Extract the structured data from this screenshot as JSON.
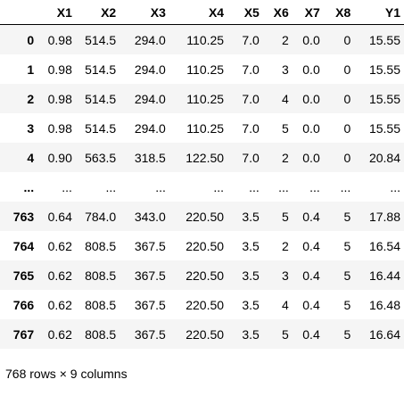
{
  "dataframe": {
    "index_header": "",
    "columns": [
      "X1",
      "X2",
      "X3",
      "X4",
      "X5",
      "X6",
      "X7",
      "X8",
      "Y1"
    ],
    "rows": [
      {
        "index": "0",
        "values": [
          "0.98",
          "514.5",
          "294.0",
          "110.25",
          "7.0",
          "2",
          "0.0",
          "0",
          "15.55"
        ]
      },
      {
        "index": "1",
        "values": [
          "0.98",
          "514.5",
          "294.0",
          "110.25",
          "7.0",
          "3",
          "0.0",
          "0",
          "15.55"
        ]
      },
      {
        "index": "2",
        "values": [
          "0.98",
          "514.5",
          "294.0",
          "110.25",
          "7.0",
          "4",
          "0.0",
          "0",
          "15.55"
        ]
      },
      {
        "index": "3",
        "values": [
          "0.98",
          "514.5",
          "294.0",
          "110.25",
          "7.0",
          "5",
          "0.0",
          "0",
          "15.55"
        ]
      },
      {
        "index": "4",
        "values": [
          "0.90",
          "563.5",
          "318.5",
          "122.50",
          "7.0",
          "2",
          "0.0",
          "0",
          "20.84"
        ]
      },
      {
        "index": "...",
        "values": [
          "...",
          "...",
          "...",
          "...",
          "...",
          "...",
          "...",
          "...",
          "..."
        ]
      },
      {
        "index": "763",
        "values": [
          "0.64",
          "784.0",
          "343.0",
          "220.50",
          "3.5",
          "5",
          "0.4",
          "5",
          "17.88"
        ]
      },
      {
        "index": "764",
        "values": [
          "0.62",
          "808.5",
          "367.5",
          "220.50",
          "3.5",
          "2",
          "0.4",
          "5",
          "16.54"
        ]
      },
      {
        "index": "765",
        "values": [
          "0.62",
          "808.5",
          "367.5",
          "220.50",
          "3.5",
          "3",
          "0.4",
          "5",
          "16.44"
        ]
      },
      {
        "index": "766",
        "values": [
          "0.62",
          "808.5",
          "367.5",
          "220.50",
          "3.5",
          "4",
          "0.4",
          "5",
          "16.48"
        ]
      },
      {
        "index": "767",
        "values": [
          "0.62",
          "808.5",
          "367.5",
          "220.50",
          "3.5",
          "5",
          "0.4",
          "5",
          "16.64"
        ]
      }
    ],
    "shape_text": "768 rows × 9 columns"
  }
}
